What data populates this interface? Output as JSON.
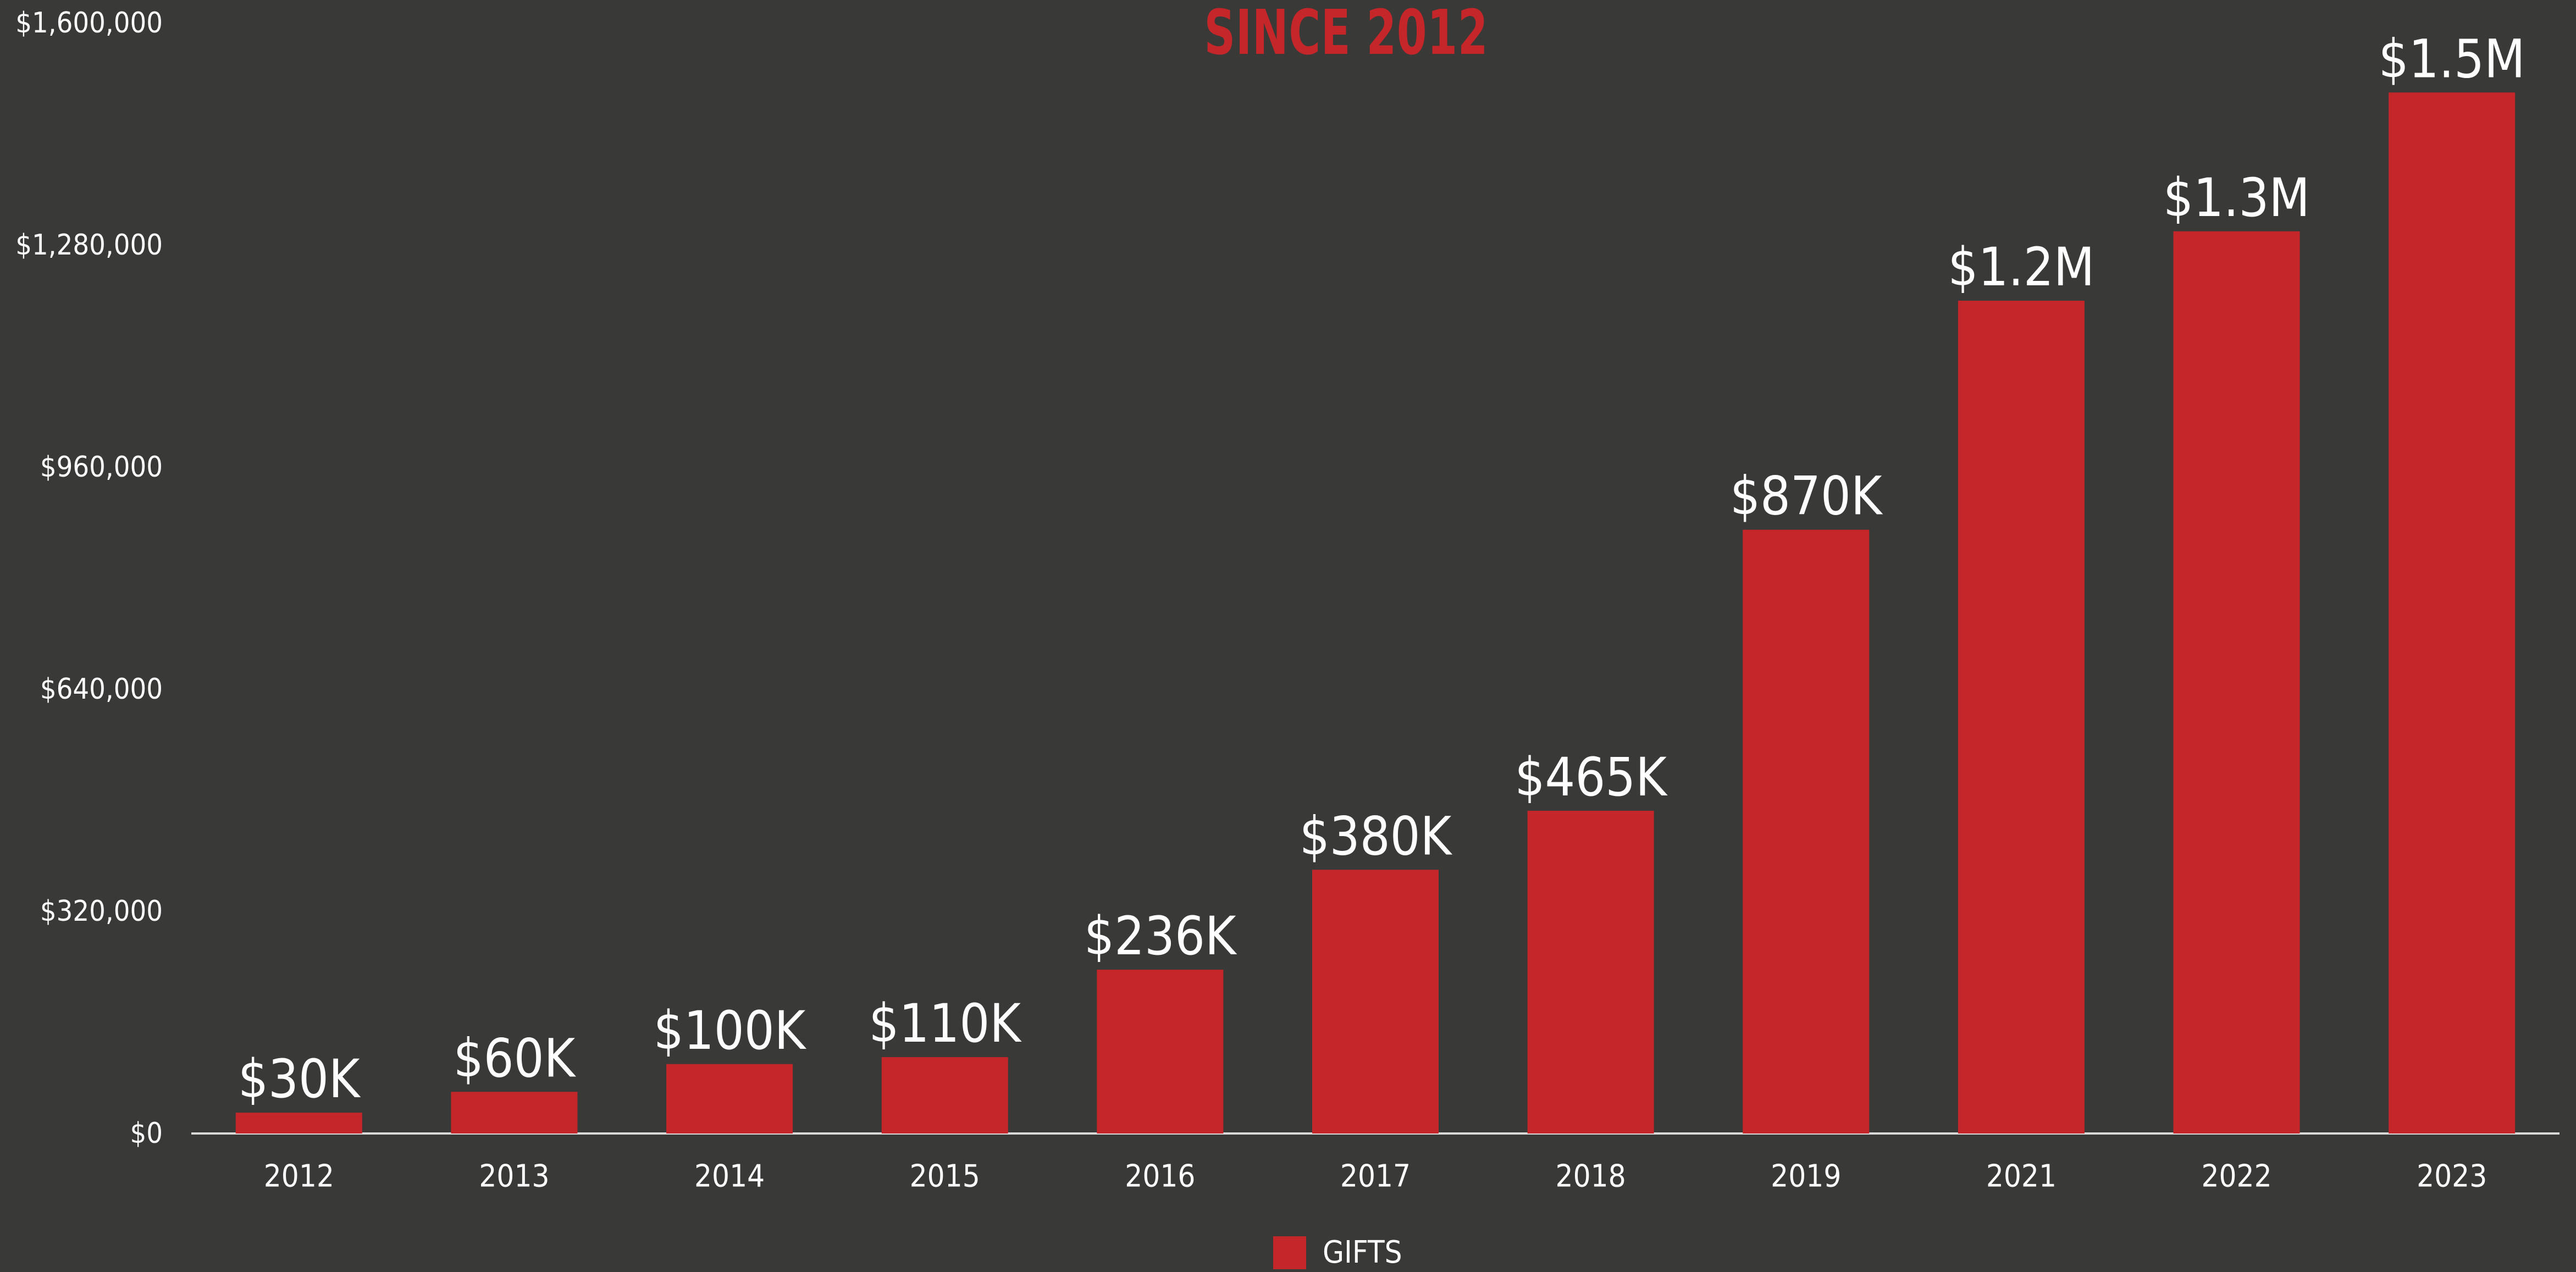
{
  "chart_data": {
    "type": "bar",
    "title": "SINCE 2012",
    "categories": [
      "2012",
      "2013",
      "2014",
      "2015",
      "2016",
      "2017",
      "2018",
      "2019",
      "2021",
      "2022",
      "2023"
    ],
    "series": [
      {
        "name": "GIFTS",
        "values": [
          30000,
          60000,
          100000,
          110000,
          236000,
          380000,
          465000,
          870000,
          1200000,
          1300000,
          1500000
        ],
        "data_labels": [
          "$30K",
          "$60K",
          "$100K",
          "$110K",
          "$236K",
          "$380K",
          "$465K",
          "$870K",
          "$1.2M",
          "$1.3M",
          "$1.5M"
        ]
      }
    ],
    "ylim": [
      0,
      1600000
    ],
    "yticks": [
      0,
      320000,
      640000,
      960000,
      1280000,
      1600000
    ],
    "ytick_labels": [
      "$0",
      "$320,000",
      "$640,000",
      "$960,000",
      "$1,280,000",
      "$1,600,000"
    ],
    "xlabel": "",
    "ylabel": "",
    "grid": false,
    "legend": "bottom-center",
    "colors": {
      "bar": "#c4262a",
      "title": "#c4262a",
      "background": "#393937",
      "text": "#ffffff",
      "axis_line": "#d9d9d9"
    }
  }
}
